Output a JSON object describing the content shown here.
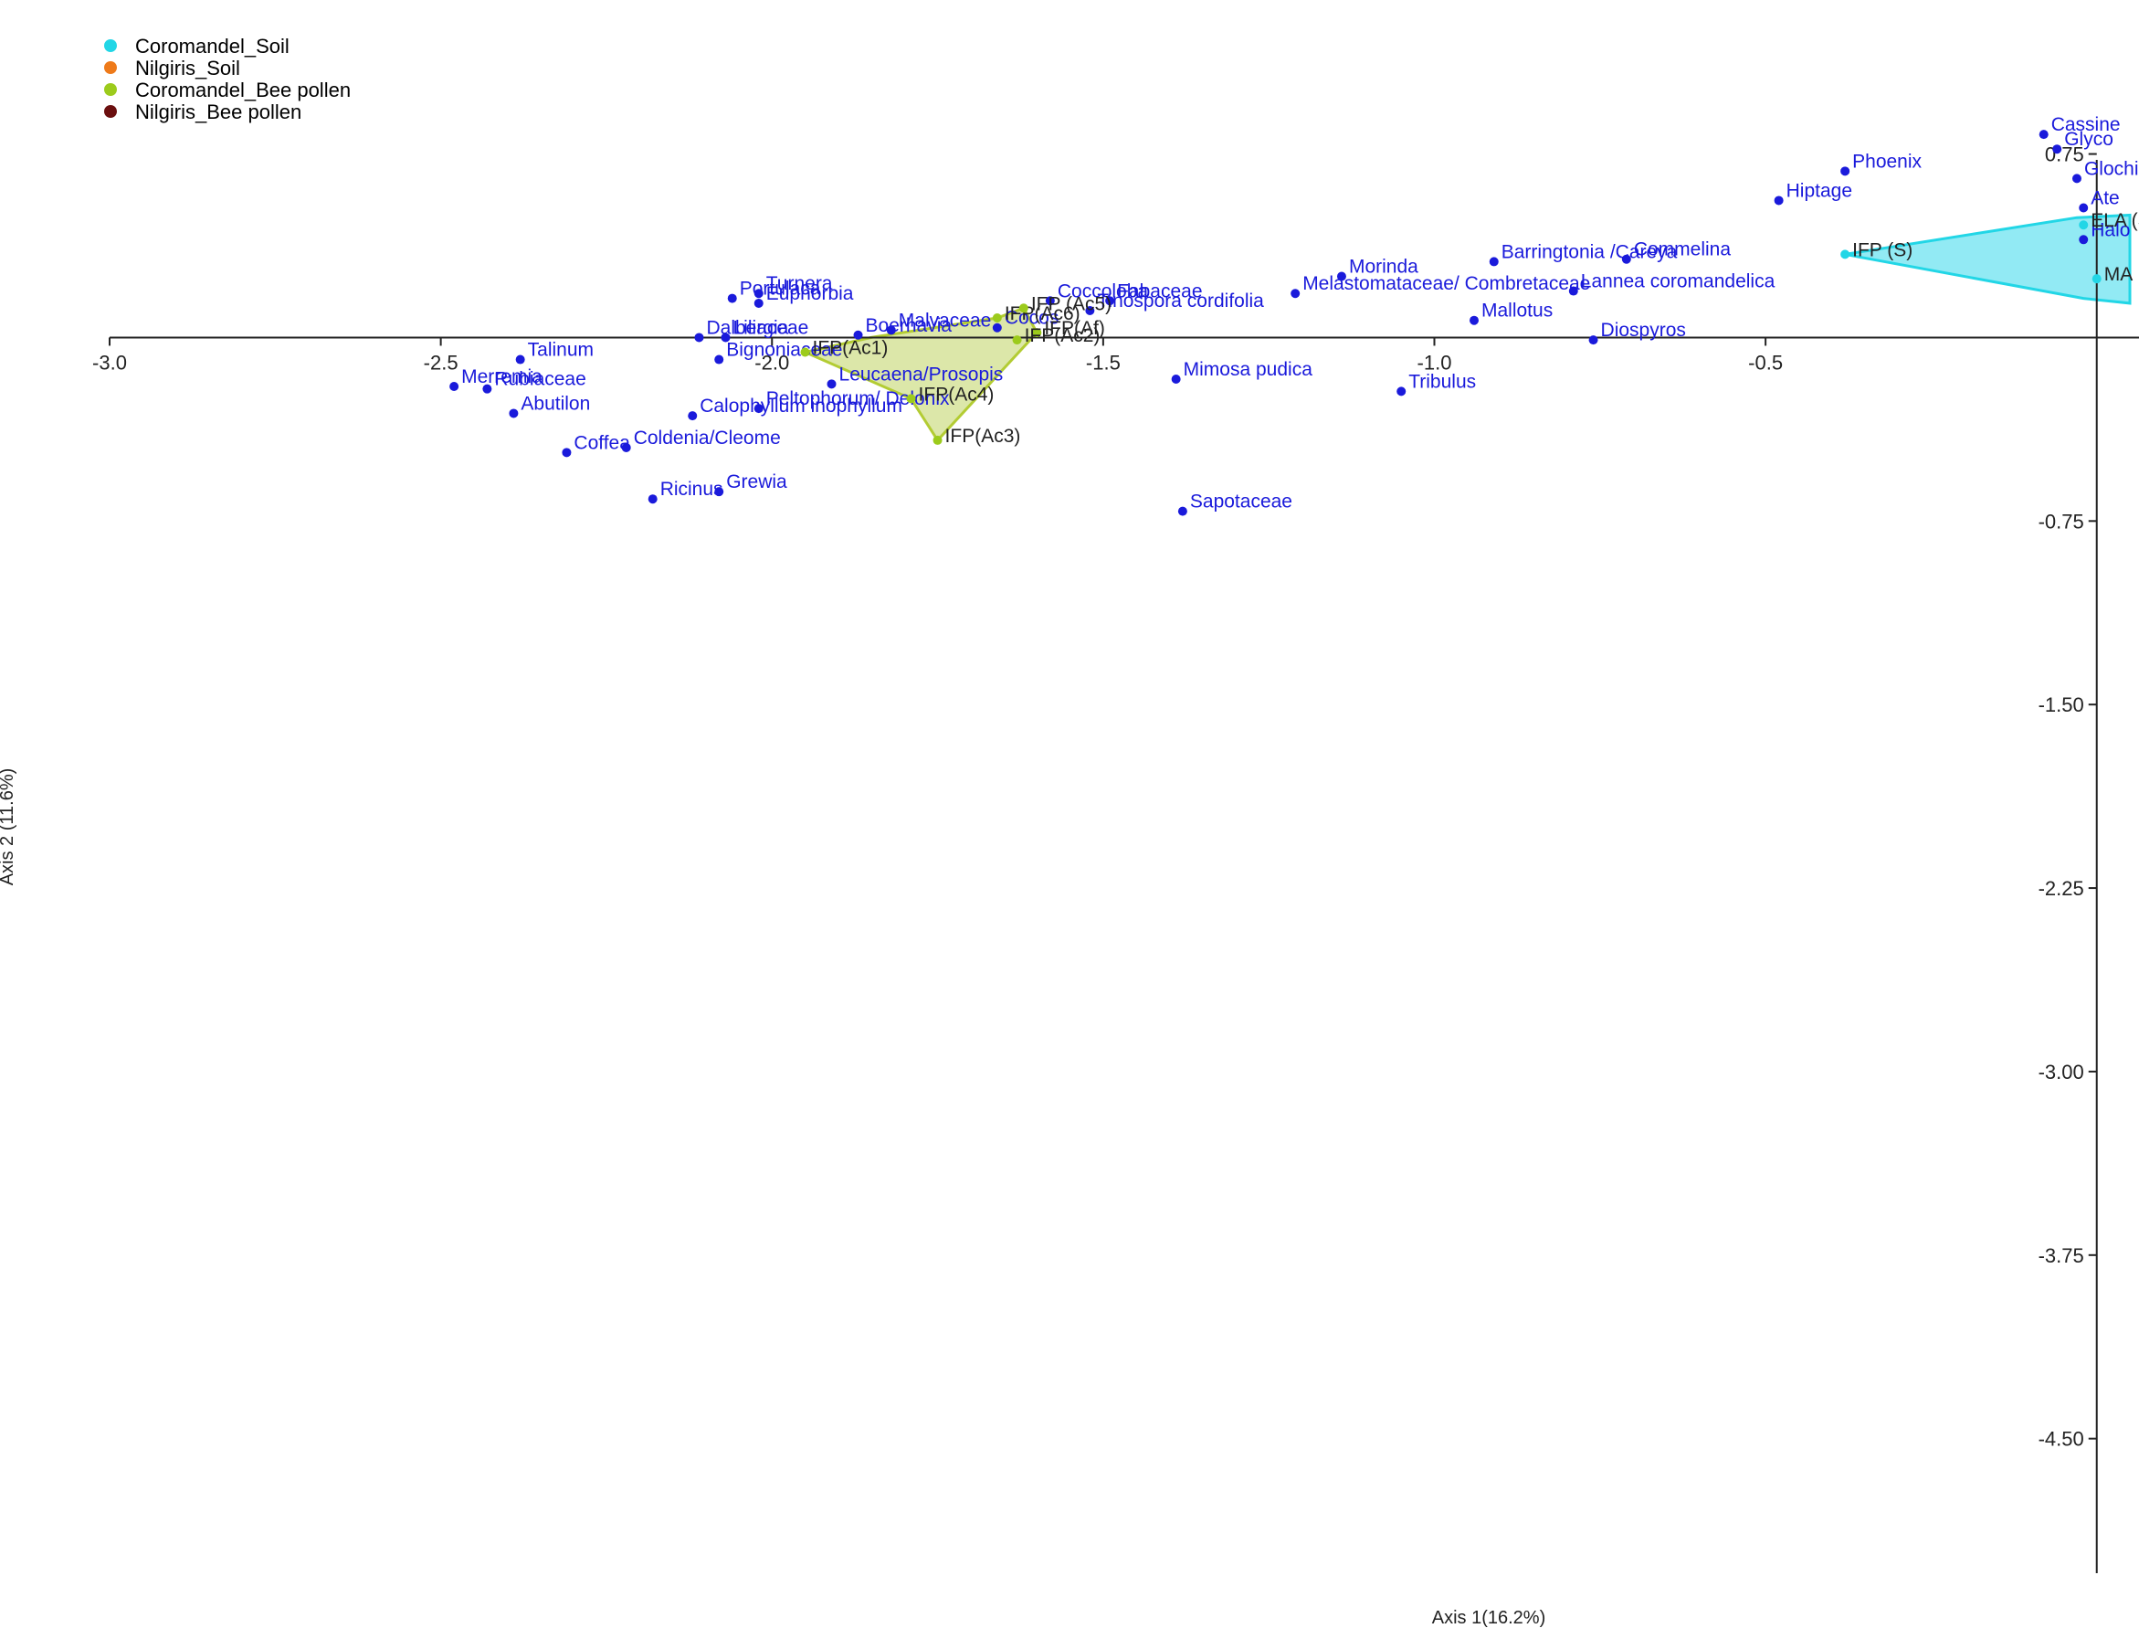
{
  "chart_data": {
    "type": "scatter",
    "xlabel": "Axis 1(16.2%)",
    "ylabel": "Axis 2 (11.6%)",
    "xlim": [
      -3.0,
      0.05
    ],
    "ylim": [
      -5.05,
      0.95
    ],
    "grid": false,
    "legend": {
      "position": "top-left",
      "entries": [
        {
          "name": "Coromandel_Soil",
          "color": "#22d6e6"
        },
        {
          "name": "Nilgiris_Soil",
          "color": "#ee7a1a"
        },
        {
          "name": "Coromandel_Bee pollen",
          "color": "#9ccb1c"
        },
        {
          "name": "Nilgiris_Bee pollen",
          "color": "#6b0f0f"
        }
      ]
    },
    "x_ticks": [
      {
        "value": -3.0,
        "label": "-3.0"
      },
      {
        "value": -2.5,
        "label": "-2.5"
      },
      {
        "value": -2.0,
        "label": "-2.0"
      },
      {
        "value": -1.5,
        "label": "-1.5"
      },
      {
        "value": -1.0,
        "label": "-1.0"
      },
      {
        "value": -0.5,
        "label": "-0.5"
      }
    ],
    "y_ticks": [
      {
        "value": 0.75,
        "label": "0.75"
      },
      {
        "value": -0.75,
        "label": "-0.75"
      },
      {
        "value": -1.5,
        "label": "-1.50"
      },
      {
        "value": -2.25,
        "label": "-2.25"
      },
      {
        "value": -3.0,
        "label": "-3.00"
      },
      {
        "value": -3.75,
        "label": "-3.75"
      },
      {
        "value": -4.5,
        "label": "-4.50"
      }
    ],
    "taxa_color": "#1a1adb",
    "taxa": [
      {
        "label": "Cassine",
        "x": -0.08,
        "y": 0.83
      },
      {
        "label": "Glyco",
        "x": -0.06,
        "y": 0.77
      },
      {
        "label": "Glochi",
        "x": -0.03,
        "y": 0.65
      },
      {
        "label": "Ate",
        "x": -0.02,
        "y": 0.53
      },
      {
        "label": "Halo",
        "x": -0.02,
        "y": 0.4
      },
      {
        "label": "Phoenix",
        "x": -0.38,
        "y": 0.68
      },
      {
        "label": "Hiptage",
        "x": -0.48,
        "y": 0.56
      },
      {
        "label": "Barringtonia /Careya",
        "x": -0.91,
        "y": 0.31
      },
      {
        "label": "Commelina",
        "x": -0.71,
        "y": 0.32
      },
      {
        "label": "Lannea coromandelica",
        "x": -0.79,
        "y": 0.19
      },
      {
        "label": "Morinda",
        "x": -1.14,
        "y": 0.25
      },
      {
        "label": "Melastomataceae/ Combretaceae",
        "x": -1.21,
        "y": 0.18
      },
      {
        "label": "Mallotus",
        "x": -0.94,
        "y": 0.07
      },
      {
        "label": "Diospyros",
        "x": -0.76,
        "y": -0.01
      },
      {
        "label": "Fabaceae",
        "x": -1.49,
        "y": 0.15
      },
      {
        "label": "Coccoloba",
        "x": -1.58,
        "y": 0.15
      },
      {
        "label": "Tinospora cordifolia",
        "x": -1.52,
        "y": 0.11
      },
      {
        "label": "Cocos",
        "x": -1.66,
        "y": 0.04
      },
      {
        "label": "Malvaceae",
        "x": -1.82,
        "y": 0.03
      },
      {
        "label": "Boerhavia",
        "x": -1.87,
        "y": 0.01
      },
      {
        "label": "Turnera",
        "x": -2.02,
        "y": 0.18
      },
      {
        "label": "Portulaca",
        "x": -2.06,
        "y": 0.16
      },
      {
        "label": "Euphorbia",
        "x": -2.02,
        "y": 0.14
      },
      {
        "label": "Dalbergia",
        "x": -2.11,
        "y": 0.0
      },
      {
        "label": "Liliaceae",
        "x": -2.07,
        "y": 0.0
      },
      {
        "label": "Bignoniaceae",
        "x": -2.08,
        "y": -0.09
      },
      {
        "label": "Leucaena/Prosopis",
        "x": -1.91,
        "y": -0.19
      },
      {
        "label": "Peltophorum/ Delonix",
        "x": -2.02,
        "y": -0.29
      },
      {
        "label": "Calophyllum inophyllum",
        "x": -2.12,
        "y": -0.32
      },
      {
        "label": "Talinum",
        "x": -2.38,
        "y": -0.09
      },
      {
        "label": "Merremia",
        "x": -2.48,
        "y": -0.2
      },
      {
        "label": "Rubiaceae",
        "x": -2.43,
        "y": -0.21
      },
      {
        "label": "Abutilon",
        "x": -2.39,
        "y": -0.31
      },
      {
        "label": "Coldenia/Cleome",
        "x": -2.22,
        "y": -0.45
      },
      {
        "label": "Coffea",
        "x": -2.31,
        "y": -0.47
      },
      {
        "label": "Grewia",
        "x": -2.08,
        "y": -0.63
      },
      {
        "label": "Ricinus",
        "x": -2.18,
        "y": -0.66
      },
      {
        "label": "Mimosa pudica",
        "x": -1.39,
        "y": -0.17
      },
      {
        "label": "Tribulus",
        "x": -1.05,
        "y": -0.22
      },
      {
        "label": "Sapotaceae",
        "x": -1.38,
        "y": -0.71
      }
    ],
    "samples": [
      {
        "label": "IFP (S)",
        "group": "Coromandel_Soil",
        "x": -0.38,
        "y": 0.34
      },
      {
        "label": "ELA (S",
        "group": "Coromandel_Soil",
        "x": -0.02,
        "y": 0.46
      },
      {
        "label": "MA",
        "group": "Coromandel_Soil",
        "x": 0.0,
        "y": 0.24
      },
      {
        "label": "IFP(Ac6)",
        "group": "Coromandel_Bee pollen",
        "x": -1.66,
        "y": 0.08
      },
      {
        "label": "IFP (Ac5)",
        "group": "Coromandel_Bee pollen",
        "x": -1.62,
        "y": 0.12
      },
      {
        "label": "IFP(Af)",
        "group": "Coromandel_Bee pollen",
        "x": -1.6,
        "y": 0.02
      },
      {
        "label": "IFP(Ac2)",
        "group": "Coromandel_Bee pollen",
        "x": -1.63,
        "y": -0.01
      },
      {
        "label": "IFP(Ac1)",
        "group": "Coromandel_Bee pollen",
        "x": -1.95,
        "y": -0.06
      },
      {
        "label": "IFP(Ac4)",
        "group": "Coromandel_Bee pollen",
        "x": -1.79,
        "y": -0.25
      },
      {
        "label": "IFP(Ac3)",
        "group": "Coromandel_Bee pollen",
        "x": -1.75,
        "y": -0.42
      }
    ],
    "hulls": [
      {
        "group": "Coromandel_Soil",
        "fill": "#7fe6f2",
        "stroke": "#22d6e6",
        "points": [
          [
            -0.38,
            0.34
          ],
          [
            -0.03,
            0.49
          ],
          [
            0.05,
            0.5
          ],
          [
            0.05,
            0.14
          ],
          [
            -0.02,
            0.16
          ]
        ]
      },
      {
        "group": "Coromandel_Bee pollen",
        "fill": "#d6e39a",
        "stroke": "#b3cc33",
        "points": [
          [
            -1.95,
            -0.06
          ],
          [
            -1.85,
            0.0
          ],
          [
            -1.66,
            0.08
          ],
          [
            -1.62,
            0.12
          ],
          [
            -1.6,
            0.02
          ],
          [
            -1.75,
            -0.42
          ],
          [
            -1.79,
            -0.25
          ]
        ]
      }
    ]
  }
}
